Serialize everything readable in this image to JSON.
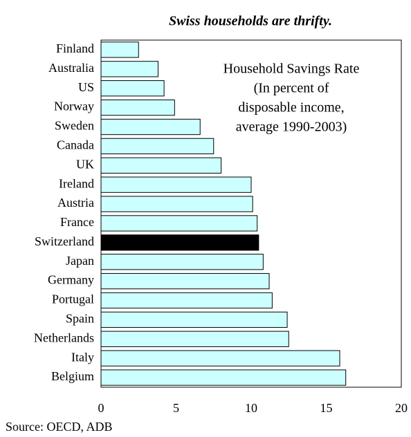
{
  "chart_data": {
    "type": "bar",
    "orientation": "horizontal",
    "title": "Swiss households are thrifty.",
    "annotation": [
      "Household Savings Rate",
      "(In percent of",
      "disposable income,",
      "average 1990-2003)"
    ],
    "source": "Source: OECD, ADB",
    "categories": [
      "Finland",
      "Australia",
      "US",
      "Norway",
      "Sweden",
      "Canada",
      "UK",
      "Ireland",
      "Austria",
      "France",
      "Switzerland",
      "Japan",
      "Germany",
      "Portugal",
      "Spain",
      "Netherlands",
      "Italy",
      "Belgium"
    ],
    "values": [
      2.5,
      3.8,
      4.2,
      4.9,
      6.6,
      7.5,
      8.0,
      10.0,
      10.1,
      10.4,
      10.5,
      10.8,
      11.2,
      11.4,
      12.4,
      12.5,
      15.9,
      16.3
    ],
    "colors": [
      "#ccffff",
      "#ccffff",
      "#ccffff",
      "#ccffff",
      "#ccffff",
      "#ccffff",
      "#ccffff",
      "#ccffff",
      "#ccffff",
      "#ccffff",
      "#000000",
      "#ccffff",
      "#ccffff",
      "#ccffff",
      "#ccffff",
      "#ccffff",
      "#ccffff",
      "#ccffff"
    ],
    "xlim": [
      0,
      20
    ],
    "xticks": [
      0,
      5,
      10,
      15,
      20
    ],
    "grid": false
  }
}
